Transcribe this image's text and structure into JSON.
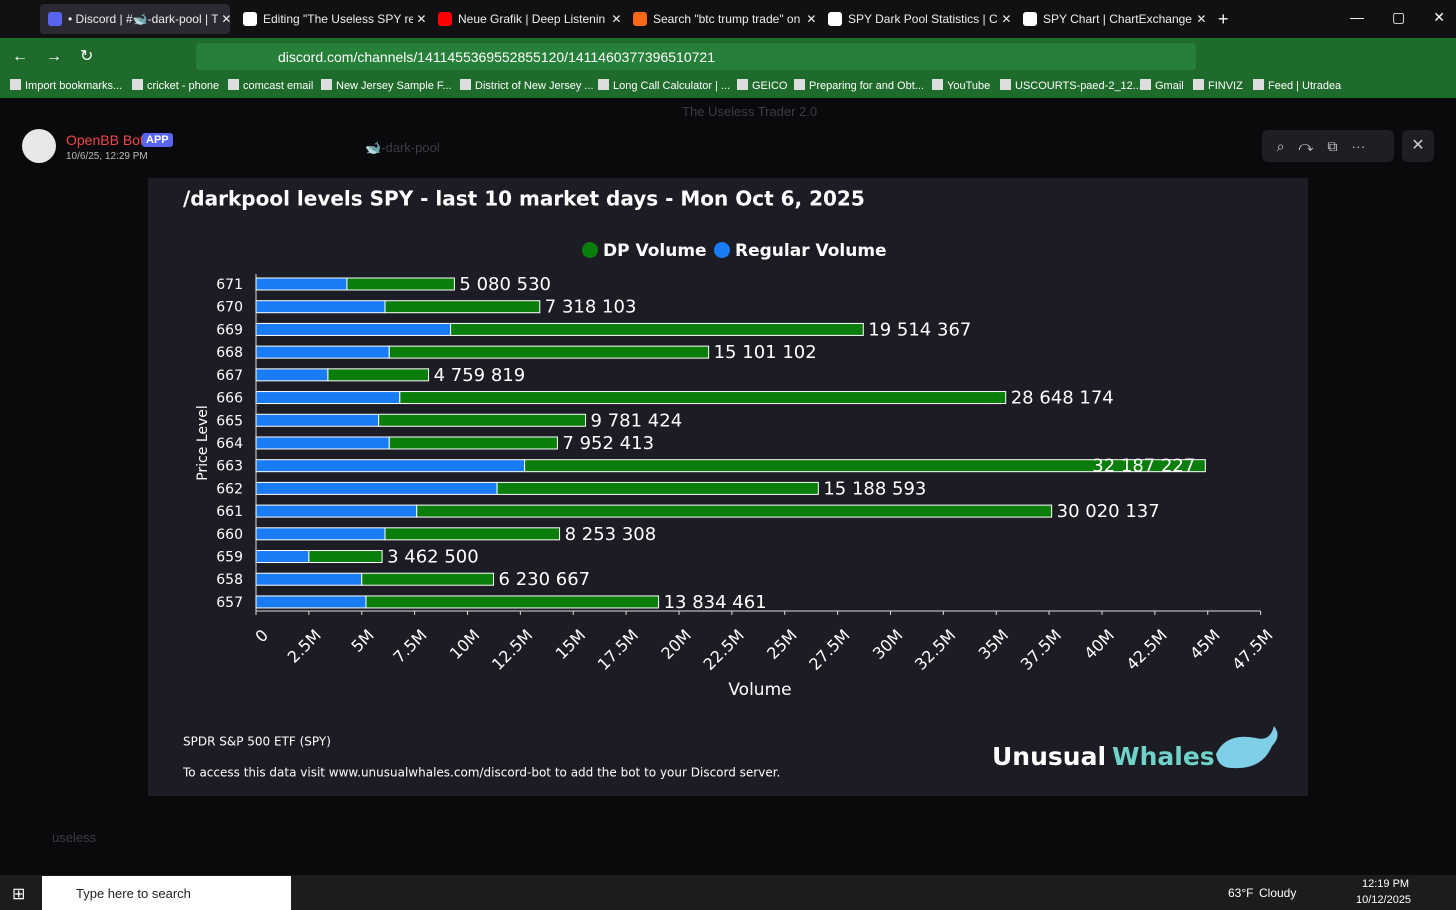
{
  "browser": {
    "tabs": [
      "• Discord | #🐋-dark-pool | The",
      "Editing \"The Useless SPY report",
      "Neue Grafik | Deep Listenin",
      "Search \"btc trump trade\" on Su",
      "SPY Dark Pool Statistics | ChartE",
      "SPY Chart | ChartExchange"
    ],
    "url": "discord.com/channels/1411455369552855120/1411460377396510721",
    "bookmarks": [
      "Import bookmarks...",
      "cricket - phone",
      "comcast email",
      "New Jersey Sample F...",
      "District of New Jersey ...",
      "Long Call Calculator | ...",
      "GEICO",
      "Preparing for and Obt...",
      "YouTube",
      "USCOURTS-paed-2_12...",
      "Gmail",
      "FINVIZ",
      "Feed | Utradea"
    ]
  },
  "viewer": {
    "author": "OpenBB Bot",
    "badge": "APP",
    "timestamp": "10/6/25, 12:29 PM",
    "server": "The Useless Trader 2.0",
    "channel": "🐋-dark-pool",
    "user": "useless"
  },
  "chart_data": {
    "type": "bar",
    "orientation": "horizontal",
    "stacked": true,
    "title": "/darkpool levels SPY - last 10 market days - Mon Oct 6, 2025",
    "categories": [
      "671",
      "670",
      "669",
      "668",
      "667",
      "666",
      "665",
      "664",
      "663",
      "662",
      "661",
      "660",
      "659",
      "658",
      "657"
    ],
    "series": [
      {
        "name": "DP Volume",
        "color": "#0b7d0b",
        "values": [
          5080530,
          7318103,
          19514367,
          15101102,
          4759819,
          28648174,
          9781424,
          7952413,
          32187227,
          15188593,
          30020137,
          8253308,
          3462500,
          6230667,
          13834461
        ],
        "value_labels": [
          "5 080 530",
          "7 318 103",
          "19 514 367",
          "15 101 102",
          "4 759 819",
          "28 648 174",
          "9 781 424",
          "7 952 413",
          "32 187 227",
          "15 188 593",
          "30 020 137",
          "8 253 308",
          "3 462 500",
          "6 230 667",
          "13 834 461"
        ]
      },
      {
        "name": "Regular Volume",
        "color": "#1a7cf5",
        "values": [
          4300000,
          6100000,
          9200000,
          6300000,
          3400000,
          6800000,
          5800000,
          6300000,
          12700000,
          11400000,
          7600000,
          6100000,
          2500000,
          5000000,
          5200000
        ]
      }
    ],
    "xlabel": "Volume",
    "ylabel": "Price Level",
    "xlim": [
      0,
      47500000
    ],
    "xticks": [
      0,
      {
        "value": 2500000,
        "label": "2.5M"
      },
      {
        "value": 5000000,
        "label": "5M"
      },
      {
        "value": 7500000,
        "label": "7.5M"
      },
      {
        "value": 10000000,
        "label": "10M"
      },
      {
        "value": 12500000,
        "label": "12.5M"
      },
      {
        "value": 15000000,
        "label": "15M"
      },
      {
        "value": 17500000,
        "label": "17.5M"
      },
      {
        "value": 20000000,
        "label": "20M"
      },
      {
        "value": 22500000,
        "label": "22.5M"
      },
      {
        "value": 25000000,
        "label": "25M"
      },
      {
        "value": 27500000,
        "label": "27.5M"
      },
      {
        "value": 30000000,
        "label": "30M"
      },
      {
        "value": 32500000,
        "label": "32.5M"
      },
      {
        "value": 35000000,
        "label": "35M"
      },
      {
        "value": 37500000,
        "label": "37.5M"
      },
      {
        "value": 40000000,
        "label": "40M"
      },
      {
        "value": 42500000,
        "label": "42.5M"
      },
      {
        "value": 45000000,
        "label": "45M"
      },
      {
        "value": 47500000,
        "label": "47.5M"
      }
    ],
    "legend": "top",
    "grid": false
  },
  "footer": {
    "ticker_name": "SPDR S&P 500 ETF (SPY)",
    "note": "To access this data visit www.unusualwhales.com/discord-bot to add the bot to your Discord server.",
    "brand_1": "Unusual",
    "brand_2": "Whales"
  },
  "taskbar": {
    "search": "Type here to search",
    "temperature": "63°F",
    "weather": "Cloudy",
    "time": "12:19 PM",
    "date": "10/12/2025"
  }
}
